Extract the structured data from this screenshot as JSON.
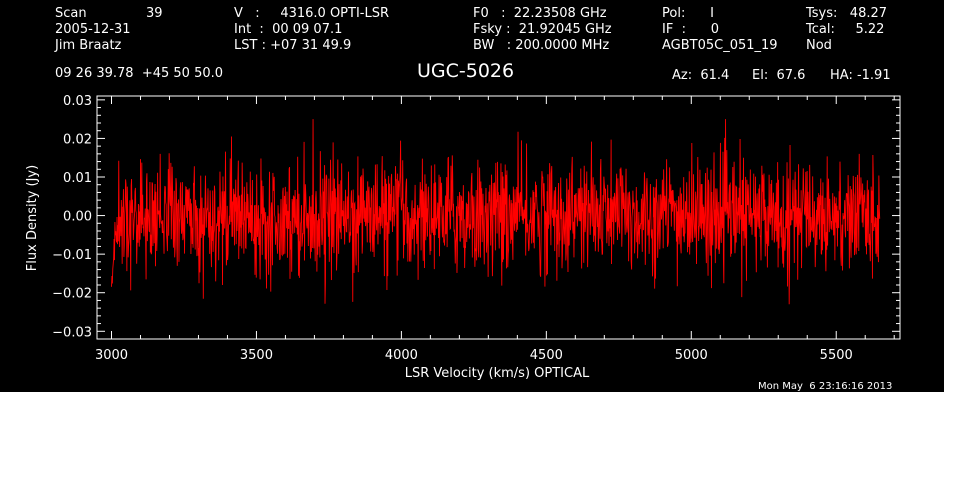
{
  "header": {
    "scan_label": "Scan",
    "scan_value": "39",
    "date": "2005-12-31",
    "observer": "Jim Braatz",
    "coords": "09 26 39.78  +45 50 50.0",
    "velocity": "V   :     4316.0 OPTI-LSR",
    "int_time": "Int  :  00 09 07.1",
    "lst": "LST : +07 31 49.9",
    "f0": "F0   :  22.23508 GHz",
    "fsky": "Fsky :  21.92045 GHz",
    "bw": "BW   : 200.0000 MHz",
    "pol": "Pol:      I",
    "if_val": "IF  :      0",
    "project": "AGBT05C_051_19",
    "tsys": "Tsys:   48.27",
    "tcal": "Tcal:     5.22",
    "mode": "Nod",
    "az": "Az:  61.4",
    "el": "El:  67.6",
    "ha": "HA: -1.91"
  },
  "footer": {
    "timestamp": "Mon May  6 23:16:16 2013"
  },
  "colors": {
    "background": "#000000",
    "axes": "#ffffff",
    "series": "#ff0000"
  },
  "chart_data": {
    "type": "line",
    "title": "UGC-5026",
    "xlabel": "LSR Velocity (km/s) OPTICAL",
    "ylabel": "Flux Density (Jy)",
    "xlim": [
      2950,
      5720
    ],
    "ylim": [
      -0.032,
      0.031
    ],
    "xticks": [
      3000,
      3500,
      4000,
      4500,
      5000,
      5500
    ],
    "xtick_labels": [
      "3000",
      "3500",
      "4000",
      "4500",
      "5000",
      "5500"
    ],
    "yticks": [
      -0.03,
      -0.02,
      -0.01,
      0.0,
      0.01,
      0.02,
      0.03
    ],
    "ytick_labels": [
      "−0.03",
      "−0.02",
      "−0.01",
      "0.00",
      "0.01",
      "0.02",
      "0.03"
    ],
    "grid": false,
    "series": [
      {
        "x_start": 3000,
        "x_end": 5650,
        "points": 1800,
        "noise_rms": 0.0085,
        "edge_dip": -0.024,
        "max_value": 0.025,
        "min_value": -0.025
      }
    ]
  }
}
